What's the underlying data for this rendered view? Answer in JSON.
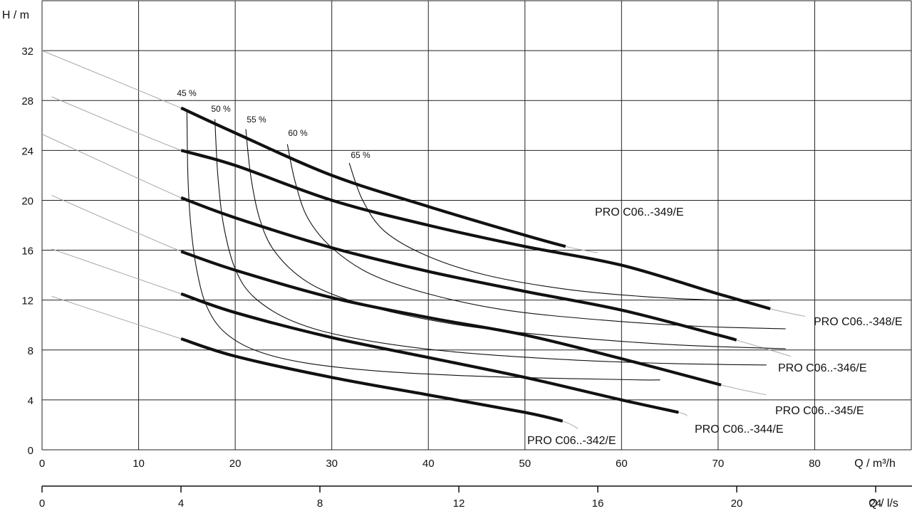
{
  "chart_data": {
    "type": "line",
    "title": "",
    "ylabel": "H / m",
    "xlabel": "Q / m³/h",
    "x2label": "Q / l/s",
    "xlim": [
      0,
      90
    ],
    "ylim": [
      0,
      36
    ],
    "x_ticks": [
      "0",
      "10",
      "20",
      "30",
      "40",
      "50",
      "60",
      "70",
      "80"
    ],
    "x_tick_values": [
      0,
      10,
      20,
      30,
      40,
      50,
      60,
      70,
      80
    ],
    "y_ticks": [
      "0",
      "4",
      "8",
      "12",
      "16",
      "20",
      "24",
      "28",
      "32"
    ],
    "y_tick_values": [
      0,
      4,
      8,
      12,
      16,
      20,
      24,
      28,
      32
    ],
    "x2_ticks": [
      "0",
      "4",
      "8",
      "12",
      "16",
      "20",
      "24"
    ],
    "x2_tick_values": [
      0,
      4,
      8,
      12,
      16,
      20,
      24
    ],
    "grid": true,
    "series": [
      {
        "name": "PRO C06..-349/E",
        "x": [
          14.4,
          20,
          30,
          40,
          50,
          54.2
        ],
        "y": [
          27.4,
          25.4,
          22.0,
          19.5,
          17.2,
          16.3
        ],
        "ext_x": [
          0,
          14.4,
          54.2,
          57.5
        ],
        "ext_y": [
          32.0,
          27.4,
          16.3,
          15.8
        ]
      },
      {
        "name": "PRO C06..-348/E",
        "x": [
          14.4,
          20,
          30,
          40,
          50,
          60,
          70,
          75.4
        ],
        "y": [
          24.0,
          22.8,
          20.0,
          18.0,
          16.3,
          14.8,
          12.5,
          11.3
        ],
        "ext_x": [
          1,
          14.4,
          75.4,
          79
        ],
        "ext_y": [
          28.3,
          24.0,
          11.3,
          10.7
        ]
      },
      {
        "name": "PRO C06..-346/E",
        "x": [
          14.4,
          20,
          30,
          40,
          50,
          60,
          70,
          71.9
        ],
        "y": [
          20.2,
          18.6,
          16.2,
          14.3,
          12.7,
          11.2,
          9.2,
          8.8
        ],
        "ext_x": [
          0,
          14.4,
          71.9,
          77.5
        ],
        "ext_y": [
          25.3,
          20.2,
          8.8,
          7.5
        ]
      },
      {
        "name": "PRO C06..-345/E",
        "x": [
          14.4,
          20,
          30,
          40,
          50,
          60,
          70.3
        ],
        "y": [
          15.9,
          14.4,
          12.2,
          10.6,
          9.2,
          7.3,
          5.2
        ],
        "ext_x": [
          1,
          14.4,
          70.3,
          75
        ],
        "ext_y": [
          20.4,
          15.9,
          5.2,
          4.4
        ]
      },
      {
        "name": "PRO C06..-344/E",
        "x": [
          14.4,
          20,
          30,
          40,
          50,
          60,
          65.9
        ],
        "y": [
          12.5,
          11.0,
          9.0,
          7.4,
          5.8,
          4.0,
          3.0
        ],
        "ext_x": [
          1,
          14.4,
          65.9,
          66.8
        ],
        "ext_y": [
          16.1,
          12.5,
          3.0,
          2.7
        ]
      },
      {
        "name": "PRO C06..-342/E",
        "x": [
          14.4,
          20,
          30,
          40,
          50,
          53.9
        ],
        "y": [
          8.9,
          7.5,
          5.8,
          4.4,
          3.0,
          2.3
        ],
        "ext_x": [
          1,
          14.4,
          53.9,
          55.5
        ],
        "ext_y": [
          12.3,
          8.9,
          2.3,
          1.7
        ]
      }
    ],
    "curve_labels": [
      {
        "text": "PRO C06..-349/E"
      },
      {
        "text": "PRO C06..-348/E"
      },
      {
        "text": "PRO C06..-346/E"
      },
      {
        "text": "PRO C06..-345/E"
      },
      {
        "text": "PRO C06..-344/E"
      },
      {
        "text": "PRO C06..-342/E"
      }
    ],
    "efficiency_curves": [
      {
        "label": "45 %",
        "x": [
          15.0,
          15.1,
          15.4,
          16.0,
          17.0,
          18.8,
          22.0,
          27.0,
          35.0,
          45.0,
          55.0,
          62.0,
          64.0
        ],
        "y": [
          27.2,
          22.0,
          18.0,
          14.5,
          11.6,
          9.5,
          8.0,
          7.0,
          6.3,
          5.9,
          5.7,
          5.6,
          5.6
        ]
      },
      {
        "label": "50 %",
        "x": [
          17.9,
          18.2,
          18.8,
          20.0,
          22.0,
          26.0,
          32.0,
          42.0,
          55.0,
          66.0,
          75.0
        ],
        "y": [
          26.5,
          22.0,
          18.0,
          14.5,
          12.2,
          10.3,
          9.0,
          7.9,
          7.2,
          6.9,
          6.8
        ]
      },
      {
        "label": "55 %",
        "x": [
          21.1,
          21.6,
          22.5,
          24.0,
          27.0,
          31.0,
          37.0,
          45.0,
          55.0,
          66.0,
          77.0
        ],
        "y": [
          25.7,
          22.0,
          18.6,
          16.0,
          13.7,
          12.2,
          10.9,
          9.8,
          9.0,
          8.4,
          8.1
        ]
      },
      {
        "label": "60 %",
        "x": [
          25.4,
          26.2,
          27.5,
          30.0,
          34.0,
          40.0,
          48.0,
          58.0,
          68.0,
          77.0
        ],
        "y": [
          24.5,
          21.5,
          18.6,
          16.2,
          14.1,
          12.5,
          11.2,
          10.4,
          9.9,
          9.7
        ]
      },
      {
        "label": "65 %",
        "x": [
          31.8,
          33.2,
          35.5,
          40.0,
          46.0,
          54.0,
          62.0,
          70.0,
          75.4
        ],
        "y": [
          23.0,
          20.0,
          17.5,
          15.5,
          14.0,
          12.9,
          12.3,
          12.0,
          12.0
        ]
      }
    ]
  }
}
